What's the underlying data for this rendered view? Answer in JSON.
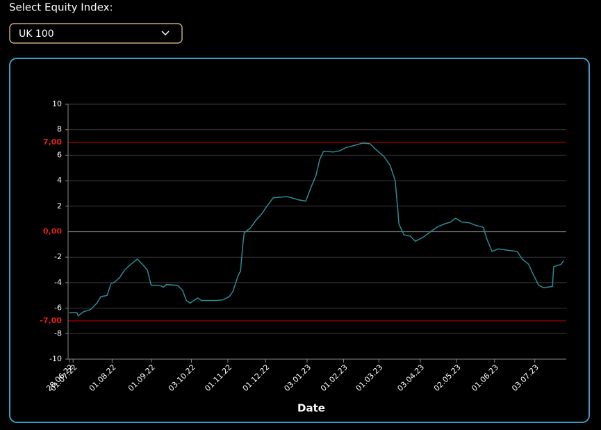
{
  "controls": {
    "label": "Select Equity Index:",
    "selected": "UK 100"
  },
  "chart_data": {
    "type": "line",
    "xlabel": "Date",
    "color": "#2a8d99",
    "x": [
      "2022-06-28",
      "2022-07-04",
      "2022-07-05",
      "2022-07-09",
      "2022-07-15",
      "2022-07-20",
      "2022-07-23",
      "2022-07-28",
      "2022-07-31",
      "2022-08-03",
      "2022-08-07",
      "2022-08-11",
      "2022-08-16",
      "2022-08-21",
      "2022-08-25",
      "2022-08-29",
      "2022-09-01",
      "2022-09-07",
      "2022-09-11",
      "2022-09-13",
      "2022-09-22",
      "2022-09-26",
      "2022-09-29",
      "2022-10-02",
      "2022-10-08",
      "2022-10-11",
      "2022-10-22",
      "2022-10-28",
      "2022-11-02",
      "2022-11-05",
      "2022-11-09",
      "2022-11-11",
      "2022-11-13",
      "2022-11-14",
      "2022-11-19",
      "2022-11-23",
      "2022-11-28",
      "2022-12-02",
      "2022-12-07",
      "2022-12-12",
      "2022-12-18",
      "2022-12-22",
      "2022-12-27",
      "2023-01-02",
      "2023-01-06",
      "2023-01-10",
      "2023-01-13",
      "2023-01-16",
      "2023-01-24",
      "2023-01-29",
      "2023-02-03",
      "2023-02-09",
      "2023-02-16",
      "2023-02-22",
      "2023-02-26",
      "2023-03-05",
      "2023-03-10",
      "2023-03-14",
      "2023-03-16",
      "2023-03-17",
      "2023-03-21",
      "2023-03-26",
      "2023-03-30",
      "2023-04-06",
      "2023-04-11",
      "2023-04-17",
      "2023-04-22",
      "2023-04-27",
      "2023-05-01",
      "2023-05-06",
      "2023-05-12",
      "2023-05-17",
      "2023-05-23",
      "2023-05-26",
      "2023-05-30",
      "2023-06-04",
      "2023-06-11",
      "2023-06-19",
      "2023-06-23",
      "2023-06-28",
      "2023-07-01",
      "2023-07-06",
      "2023-07-10",
      "2023-07-17",
      "2023-07-18",
      "2023-07-24",
      "2023-07-26"
    ],
    "values": [
      -6.35,
      -6.35,
      -6.6,
      -6.3,
      -6.1,
      -5.6,
      -5.1,
      -5.0,
      -4.1,
      -3.95,
      -3.6,
      -3.0,
      -2.55,
      -2.15,
      -2.55,
      -3.0,
      -4.2,
      -4.2,
      -4.35,
      -4.15,
      -4.2,
      -4.6,
      -5.4,
      -5.6,
      -5.2,
      -5.4,
      -5.4,
      -5.35,
      -5.1,
      -4.7,
      -3.5,
      -3.1,
      -0.9,
      -0.1,
      0.3,
      0.85,
      1.4,
      2.0,
      2.65,
      2.7,
      2.75,
      2.65,
      2.5,
      2.4,
      3.45,
      4.4,
      5.65,
      6.3,
      6.25,
      6.35,
      6.6,
      6.75,
      6.95,
      6.9,
      6.5,
      5.9,
      5.2,
      4.0,
      1.8,
      0.6,
      -0.25,
      -0.35,
      -0.75,
      -0.4,
      0.0,
      0.4,
      0.6,
      0.75,
      1.05,
      0.75,
      0.7,
      0.5,
      0.35,
      -0.6,
      -1.55,
      -1.35,
      -1.45,
      -1.55,
      -2.15,
      -2.55,
      -3.2,
      -4.2,
      -4.4,
      -4.3,
      -2.75,
      -2.55,
      -2.25
    ],
    "xlim": [
      "2022-06-27",
      "2023-07-28"
    ],
    "xticks": [
      {
        "value": "2022-06-28",
        "label": "28.06.22"
      },
      {
        "value": "2022-07-01",
        "label": "01.07.22"
      },
      {
        "value": "2022-08-01",
        "label": "01.08.22"
      },
      {
        "value": "2022-09-01",
        "label": "01.09.22"
      },
      {
        "value": "2022-10-03",
        "label": "03.10.22"
      },
      {
        "value": "2022-11-01",
        "label": "01.11.22"
      },
      {
        "value": "2022-12-01",
        "label": "01.12.22"
      },
      {
        "value": "2023-01-03",
        "label": "03.01.23"
      },
      {
        "value": "2023-02-01",
        "label": "01.02.23"
      },
      {
        "value": "2023-03-01",
        "label": "01.03.23"
      },
      {
        "value": "2023-04-03",
        "label": "03.04.23"
      },
      {
        "value": "2023-05-02",
        "label": "02.05.23"
      },
      {
        "value": "2023-06-01",
        "label": "01.06.23"
      },
      {
        "value": "2023-07-03",
        "label": "03.07.23"
      }
    ],
    "ylim": [
      -10,
      10
    ],
    "yticks": [
      -10,
      -8,
      -6,
      -4,
      -2,
      2,
      4,
      6,
      8,
      10
    ],
    "grid": true,
    "reference_lines": [
      {
        "value": 7,
        "label": "7,00",
        "color": "#b00000"
      },
      {
        "value": 0,
        "label": "0,00",
        "color": "#777777"
      },
      {
        "value": -7,
        "label": "-7,00",
        "color": "#b00000"
      }
    ],
    "reference_label_color": "#e02020"
  }
}
